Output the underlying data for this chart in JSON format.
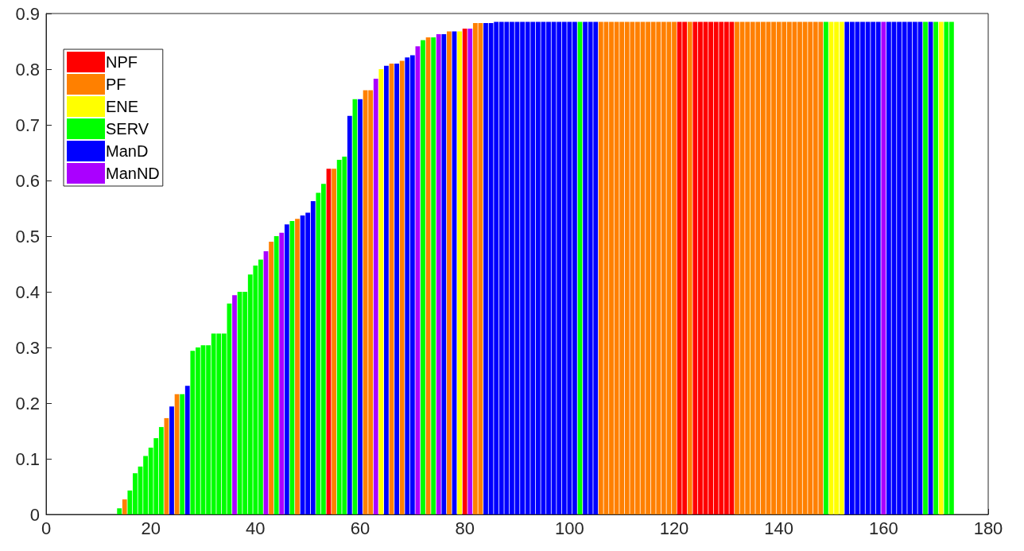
{
  "chart_data": {
    "type": "bar",
    "xlim": [
      0,
      180
    ],
    "xticks": [
      0,
      20,
      40,
      60,
      80,
      100,
      120,
      140,
      160,
      180
    ],
    "ylim": [
      0,
      0.9
    ],
    "yticks": [
      0,
      0.1,
      0.2,
      0.3,
      0.4,
      0.5,
      0.6,
      0.7,
      0.8,
      0.9
    ],
    "grid": false,
    "legend": "top left",
    "series": [
      {
        "name": "NPF",
        "color": "#ff0000",
        "x": [
          54,
          80,
          121,
          122,
          124,
          125,
          126,
          127,
          128,
          129,
          130,
          131
        ],
        "values": [
          0.621,
          0.873,
          0.885,
          0.885,
          0.885,
          0.885,
          0.885,
          0.885,
          0.885,
          0.885,
          0.885,
          0.885
        ]
      },
      {
        "name": "PF",
        "color": "#ff8000",
        "x": [
          15,
          23,
          25,
          43,
          48,
          55,
          61,
          62,
          66,
          68,
          73,
          77,
          82,
          83,
          106,
          107,
          108,
          109,
          110,
          111,
          112,
          113,
          114,
          115,
          116,
          117,
          118,
          119,
          120,
          123,
          132,
          133,
          134,
          135,
          136,
          137,
          138,
          139,
          140,
          141,
          142,
          143,
          144,
          145,
          146,
          147,
          148
        ],
        "values": [
          0.027,
          0.173,
          0.216,
          0.49,
          0.531,
          0.621,
          0.762,
          0.762,
          0.81,
          0.815,
          0.857,
          0.868,
          0.883,
          0.883,
          0.885,
          0.885,
          0.885,
          0.885,
          0.885,
          0.885,
          0.885,
          0.885,
          0.885,
          0.885,
          0.885,
          0.885,
          0.885,
          0.885,
          0.885,
          0.885,
          0.885,
          0.885,
          0.885,
          0.885,
          0.885,
          0.885,
          0.885,
          0.885,
          0.885,
          0.885,
          0.885,
          0.885,
          0.885,
          0.885,
          0.885,
          0.885,
          0.885
        ]
      },
      {
        "name": "ENE",
        "color": "#ffff00",
        "x": [
          64,
          79,
          150,
          151,
          152,
          171
        ],
        "values": [
          0.8,
          0.868,
          0.885,
          0.885,
          0.885,
          0.885
        ]
      },
      {
        "name": "SERV",
        "color": "#00ff00",
        "x": [
          14,
          16,
          17,
          18,
          19,
          20,
          21,
          22,
          26,
          28,
          29,
          30,
          31,
          32,
          33,
          34,
          35,
          37,
          38,
          39,
          40,
          41,
          44,
          47,
          52,
          53,
          56,
          57,
          59,
          72,
          74,
          102,
          149,
          168,
          170,
          172,
          173
        ],
        "values": [
          0.011,
          0.043,
          0.074,
          0.086,
          0.105,
          0.12,
          0.137,
          0.157,
          0.216,
          0.294,
          0.3,
          0.304,
          0.304,
          0.325,
          0.325,
          0.325,
          0.379,
          0.4,
          0.4,
          0.431,
          0.447,
          0.458,
          0.5,
          0.527,
          0.578,
          0.594,
          0.637,
          0.643,
          0.746,
          0.852,
          0.857,
          0.885,
          0.885,
          0.885,
          0.885,
          0.885,
          0.885
        ]
      },
      {
        "name": "ManD",
        "color": "#0000ff",
        "x": [
          24,
          27,
          46,
          49,
          50,
          51,
          58,
          60,
          65,
          67,
          69,
          70,
          76,
          78,
          84,
          85,
          86,
          87,
          88,
          89,
          90,
          91,
          92,
          93,
          94,
          95,
          96,
          97,
          98,
          99,
          100,
          101,
          103,
          104,
          105,
          153,
          154,
          155,
          156,
          157,
          158,
          159,
          161,
          162,
          163,
          164,
          165,
          166,
          167,
          169
        ],
        "values": [
          0.194,
          0.231,
          0.521,
          0.537,
          0.542,
          0.563,
          0.716,
          0.746,
          0.806,
          0.81,
          0.821,
          0.825,
          0.863,
          0.868,
          0.883,
          0.883,
          0.885,
          0.885,
          0.885,
          0.885,
          0.885,
          0.885,
          0.885,
          0.885,
          0.885,
          0.885,
          0.885,
          0.885,
          0.885,
          0.885,
          0.885,
          0.885,
          0.885,
          0.885,
          0.885,
          0.885,
          0.885,
          0.885,
          0.885,
          0.885,
          0.885,
          0.885,
          0.885,
          0.885,
          0.885,
          0.885,
          0.885,
          0.885,
          0.885,
          0.885
        ]
      },
      {
        "name": "ManND",
        "color": "#aa00ff",
        "x": [
          36,
          42,
          45,
          63,
          71,
          75,
          81,
          160
        ],
        "values": [
          0.394,
          0.473,
          0.506,
          0.783,
          0.841,
          0.863,
          0.873,
          0.885
        ]
      }
    ]
  }
}
